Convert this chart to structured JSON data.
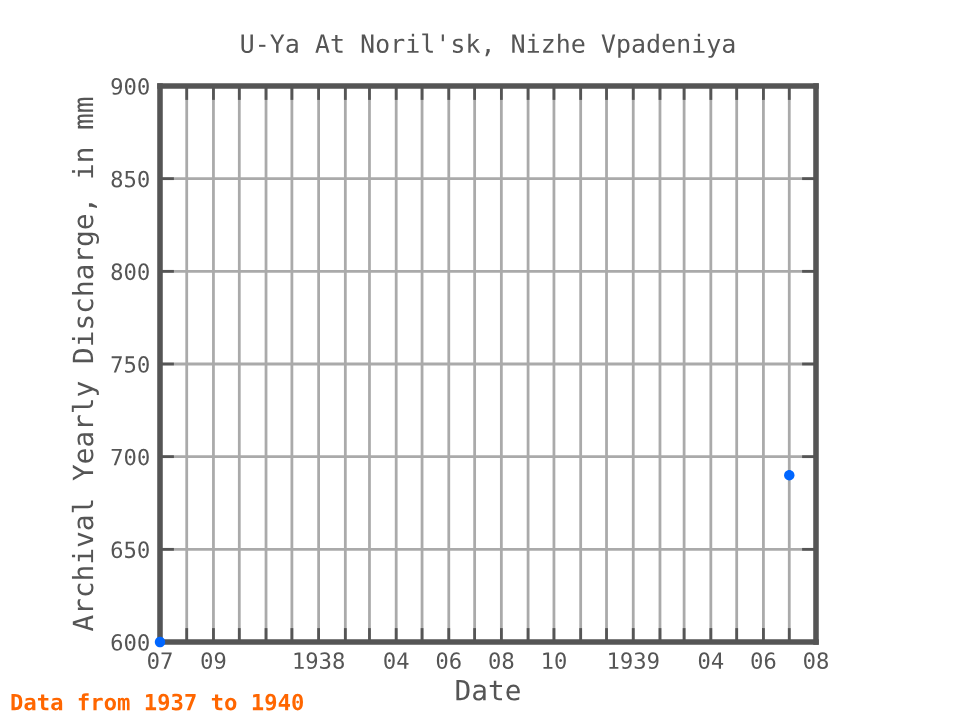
{
  "chart_data": {
    "type": "scatter",
    "title": "U-Ya At Noril'sk, Nizhe Vpadeniya",
    "xlabel": "Date",
    "ylabel": "Archival Yearly Discharge, in mm",
    "annotations": [
      "Data from 1937 to 1940"
    ],
    "x": [
      "1937-07",
      "1939-07"
    ],
    "series": [
      {
        "color": "#0066ff",
        "values": [
          600,
          690
        ]
      }
    ],
    "marker": "circle",
    "xlim": [
      "1937-07",
      "1939-08"
    ],
    "xticks": [
      {
        "value": "1937-07",
        "label": "07"
      },
      {
        "value": "1937-08",
        "label": null
      },
      {
        "value": "1937-09",
        "label": "09"
      },
      {
        "value": "1937-10",
        "label": null
      },
      {
        "value": "1937-11",
        "label": null
      },
      {
        "value": "1937-12",
        "label": null
      },
      {
        "value": "1938-01",
        "label": "1938"
      },
      {
        "value": "1938-02",
        "label": null
      },
      {
        "value": "1938-03",
        "label": null
      },
      {
        "value": "1938-04",
        "label": "04"
      },
      {
        "value": "1938-05",
        "label": null
      },
      {
        "value": "1938-06",
        "label": "06"
      },
      {
        "value": "1938-07",
        "label": null
      },
      {
        "value": "1938-08",
        "label": "08"
      },
      {
        "value": "1938-09",
        "label": null
      },
      {
        "value": "1938-10",
        "label": "10"
      },
      {
        "value": "1938-11",
        "label": null
      },
      {
        "value": "1938-12",
        "label": null
      },
      {
        "value": "1939-01",
        "label": "1939"
      },
      {
        "value": "1939-02",
        "label": null
      },
      {
        "value": "1939-03",
        "label": null
      },
      {
        "value": "1939-04",
        "label": "04"
      },
      {
        "value": "1939-05",
        "label": null
      },
      {
        "value": "1939-06",
        "label": "06"
      },
      {
        "value": "1939-07",
        "label": null
      },
      {
        "value": "1939-08",
        "label": "08"
      }
    ],
    "ylim": [
      600,
      900
    ],
    "yticks": [
      600,
      650,
      700,
      750,
      800,
      850,
      900
    ],
    "grid": true
  }
}
